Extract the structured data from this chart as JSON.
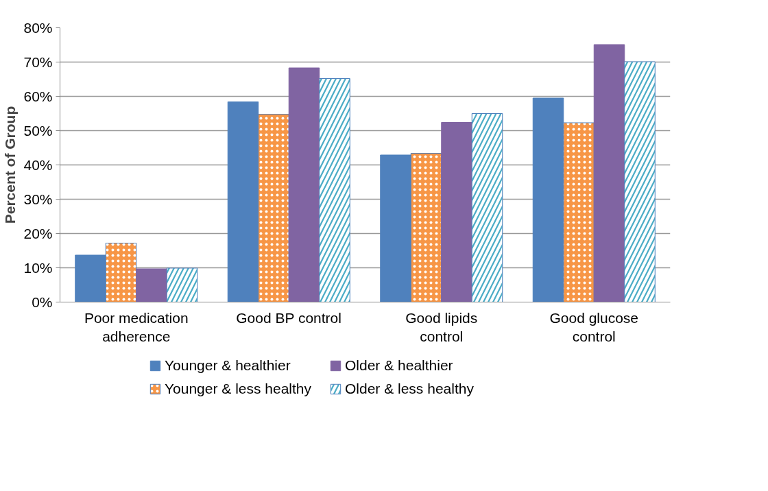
{
  "chart_data": {
    "type": "bar",
    "ylabel": "Percent of Group",
    "categories": [
      "Poor medication adherence",
      "Good BP control",
      "Good lipids control",
      "Good glucose control"
    ],
    "series": [
      {
        "name": "Younger & healthier",
        "color": "#4f81bd",
        "values": [
          13.7,
          58.4,
          42.9,
          59.5
        ]
      },
      {
        "name": "Younger & less healthy",
        "color": "#f79646",
        "values": [
          17.2,
          54.8,
          43.4,
          52.3
        ]
      },
      {
        "name": "Older & healthier",
        "color": "#8064a2",
        "values": [
          9.7,
          68.3,
          52.4,
          75.1
        ]
      },
      {
        "name": "Older & less healthy",
        "color": "#4bacc6",
        "values": [
          9.9,
          65.2,
          55.0,
          70.1
        ]
      }
    ],
    "ylim": [
      0,
      80
    ],
    "yticks": [
      {
        "value": 0,
        "label": "0%"
      },
      {
        "value": 10,
        "label": "10%"
      },
      {
        "value": 20,
        "label": "20%"
      },
      {
        "value": 30,
        "label": "30%"
      },
      {
        "value": 40,
        "label": "40%"
      },
      {
        "value": 50,
        "label": "50%"
      },
      {
        "value": 60,
        "label": "60%"
      },
      {
        "value": 70,
        "label": "70%"
      },
      {
        "value": 80,
        "label": "80%"
      }
    ],
    "grid": "y",
    "legend": "bottom"
  }
}
